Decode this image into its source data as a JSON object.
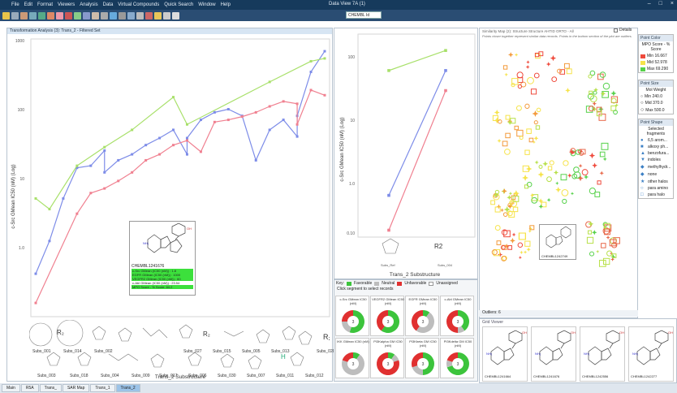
{
  "window": {
    "title": "Data View 7A (1)"
  },
  "menu": [
    "File",
    "Edit",
    "Format",
    "Viewers",
    "Analysis",
    "Data",
    "Virtual Compounds",
    "Quick Search",
    "Window",
    "Help"
  ],
  "search": {
    "value": "CHEMBL Id"
  },
  "left_panel": {
    "header": "Transformation Analysis (3): Trans_2 - Filtered Set",
    "yaxis": "c-Src GMean IC50 (nM) (Log)",
    "xaxis": "Trans_2 Substructure",
    "yticks": [
      "1000",
      "100",
      "10",
      "1.0"
    ],
    "xcats": [
      "Subs_001",
      "Subs_014",
      "Subs_002",
      "Subs_027",
      "Subs_015",
      "Subs_005",
      "Subs_013",
      "Subs_020",
      "Subs_003",
      "Subs_018",
      "Subs_004",
      "Subs_009",
      "Subs_017",
      "Subs_006",
      "Subs_030",
      "Subs_007",
      "Subs_011",
      "Subs_012"
    ]
  },
  "tooltip": {
    "id": "CHEMBL1241676",
    "rows": [
      "c-Src GMean (IC50 (nM)) : 1.8",
      "EGFR GMean (IC50 (nM)) : 1000",
      "VEGFR2 GMean (IC50 (nM)) : 60",
      "c-Abl GMean (IC50 (nM)) : 23.54",
      "MPO Score - % Score: 64.2"
    ]
  },
  "mid_panel": {
    "yaxis": "c-Src GMean IC50 (nM) (Log)",
    "xaxis": "Trans_2 Substructure",
    "yticks": [
      "100",
      "10",
      "1.0",
      "0.10"
    ],
    "xcats": [
      "Subs_Ref",
      "Subs_004"
    ],
    "r_label": "R2"
  },
  "key": {
    "label": "Key:",
    "items": [
      "Favorable",
      "Neutral",
      "Unfavorable",
      "Unassigned"
    ],
    "colors": [
      "#3cc43c",
      "#bdbdbd",
      "#e03030",
      "#ffffff"
    ],
    "hint": "Click segment to select records"
  },
  "donuts": [
    {
      "title": "c-Src GMean IC50 (nM)",
      "n": "3"
    },
    {
      "title": "VEGFR2 GMean IC50 (nM)",
      "n": "3"
    },
    {
      "title": "EGFR GMean IC50 (nM)",
      "n": "3"
    },
    {
      "title": "c-Abl GMean IC50 (nM)",
      "n": "3"
    },
    {
      "title": "IKK GMean IC50 (nM)",
      "n": "3"
    },
    {
      "title": "PI3Kalpha GM IC50 (nM)",
      "n": "3"
    },
    {
      "title": "PI3Kbeta GM IC50 (nM)",
      "n": "3"
    },
    {
      "title": "PI3Kdelta GM IC50 (nM)",
      "n": "3"
    }
  ],
  "right_panel": {
    "header": "Similarity Map (2): Structure Structure AHTID ORTO - All",
    "note": "Points closer together represent similar data records. Points in the bottom section of the plot are outliers.",
    "details": "Details",
    "outliers": "Outliers: 6",
    "grid_header": "Grid Viewer",
    "compound": "CHEMBL1242749"
  },
  "legend_color": {
    "title": "Point Color",
    "sub": "MPO Score - % Score",
    "rows": [
      {
        "label": "Min 16.667",
        "color": "#ef4a3c"
      },
      {
        "label": "Mid 52.978",
        "color": "#f6e34a"
      },
      {
        "label": "Max 69.290",
        "color": "#56d14a"
      }
    ]
  },
  "legend_size": {
    "title": "Point Size",
    "sub": "Mol Weight",
    "rows": [
      "Min 240.0",
      "Mid 370.0",
      "Max 500.0"
    ]
  },
  "legend_shape": {
    "title": "Point Shape",
    "sub": "Selected fragments",
    "rows": [
      "6,5 arom...",
      "alkoxy ph...",
      "benzofura...",
      "indoles",
      "methylhydr...",
      "none",
      "other halos",
      "para amino",
      "para halo"
    ],
    "icons": [
      "●",
      "■",
      "▲",
      "▼",
      "◆",
      "◆",
      "★",
      "○",
      "□"
    ]
  },
  "grid": [
    "CHEMBL1241664",
    "CHEMBL1241676",
    "CHEMBL1242556",
    "CHEMBL1242277"
  ],
  "tabs": [
    "Main",
    "R5A",
    "Trans_",
    "SAR Map",
    "Trans_1",
    "Trans_2"
  ],
  "chart_data": [
    {
      "type": "line",
      "title": "",
      "xlabel": "Trans_2 Substructure",
      "ylabel": "c-Src GMean IC50 (nM) (Log)",
      "yscale": "log",
      "ylim": [
        0.1,
        1000
      ],
      "series": [
        {
          "name": "",
          "color": "#7d8ce8",
          "points": [
            [
              1,
              0.4
            ],
            [
              2,
              1.2
            ],
            [
              3,
              5
            ],
            [
              4,
              14
            ],
            [
              5,
              15
            ],
            [
              6,
              25
            ],
            [
              6,
              12
            ],
            [
              7,
              18
            ],
            [
              8,
              22
            ],
            [
              9,
              30
            ],
            [
              10,
              38
            ],
            [
              11,
              50
            ],
            [
              12,
              22
            ],
            [
              12,
              38
            ],
            [
              13,
              70
            ],
            [
              14,
              90
            ],
            [
              15,
              100
            ],
            [
              16,
              80
            ],
            [
              17,
              18
            ],
            [
              18,
              50
            ],
            [
              19,
              70
            ],
            [
              20,
              40
            ],
            [
              20,
              80
            ],
            [
              21,
              350
            ],
            [
              22,
              700
            ]
          ]
        },
        {
          "name": "",
          "color": "#f08090",
          "points": [
            [
              1,
              0.15
            ],
            [
              4,
              3
            ],
            [
              5,
              6
            ],
            [
              6,
              7
            ],
            [
              7,
              9
            ],
            [
              8,
              12
            ],
            [
              9,
              18
            ],
            [
              10,
              22
            ],
            [
              11,
              30
            ],
            [
              12,
              35
            ],
            [
              13,
              24
            ],
            [
              14,
              65
            ],
            [
              15,
              70
            ],
            [
              16,
              78
            ],
            [
              17,
              90
            ],
            [
              18,
              110
            ],
            [
              19,
              130
            ],
            [
              20,
              120
            ],
            [
              20,
              60
            ],
            [
              21,
              190
            ],
            [
              22,
              160
            ]
          ]
        },
        {
          "name": "",
          "color": "#a8e06a",
          "points": [
            [
              1,
              5
            ],
            [
              2,
              3.5
            ],
            [
              4,
              15
            ],
            [
              6,
              28
            ],
            [
              8,
              50
            ],
            [
              11,
              150
            ],
            [
              12,
              60
            ],
            [
              18,
              250
            ],
            [
              21,
              500
            ],
            [
              22,
              550
            ]
          ]
        }
      ]
    },
    {
      "type": "line",
      "title": "",
      "xlabel": "Trans_2 Substructure",
      "ylabel": "c-Src GMean IC50 (nM) (Log)",
      "yscale": "log",
      "ylim": [
        0.1,
        100
      ],
      "categories": [
        "Subs_Ref",
        "Subs_004"
      ],
      "series": [
        {
          "name": "",
          "color": "#a8e06a",
          "values": [
            30,
            60
          ]
        },
        {
          "name": "",
          "color": "#7d8ce8",
          "values": [
            0.4,
            30
          ]
        },
        {
          "name": "",
          "color": "#f08090",
          "values": [
            0.12,
            15
          ]
        }
      ]
    }
  ]
}
